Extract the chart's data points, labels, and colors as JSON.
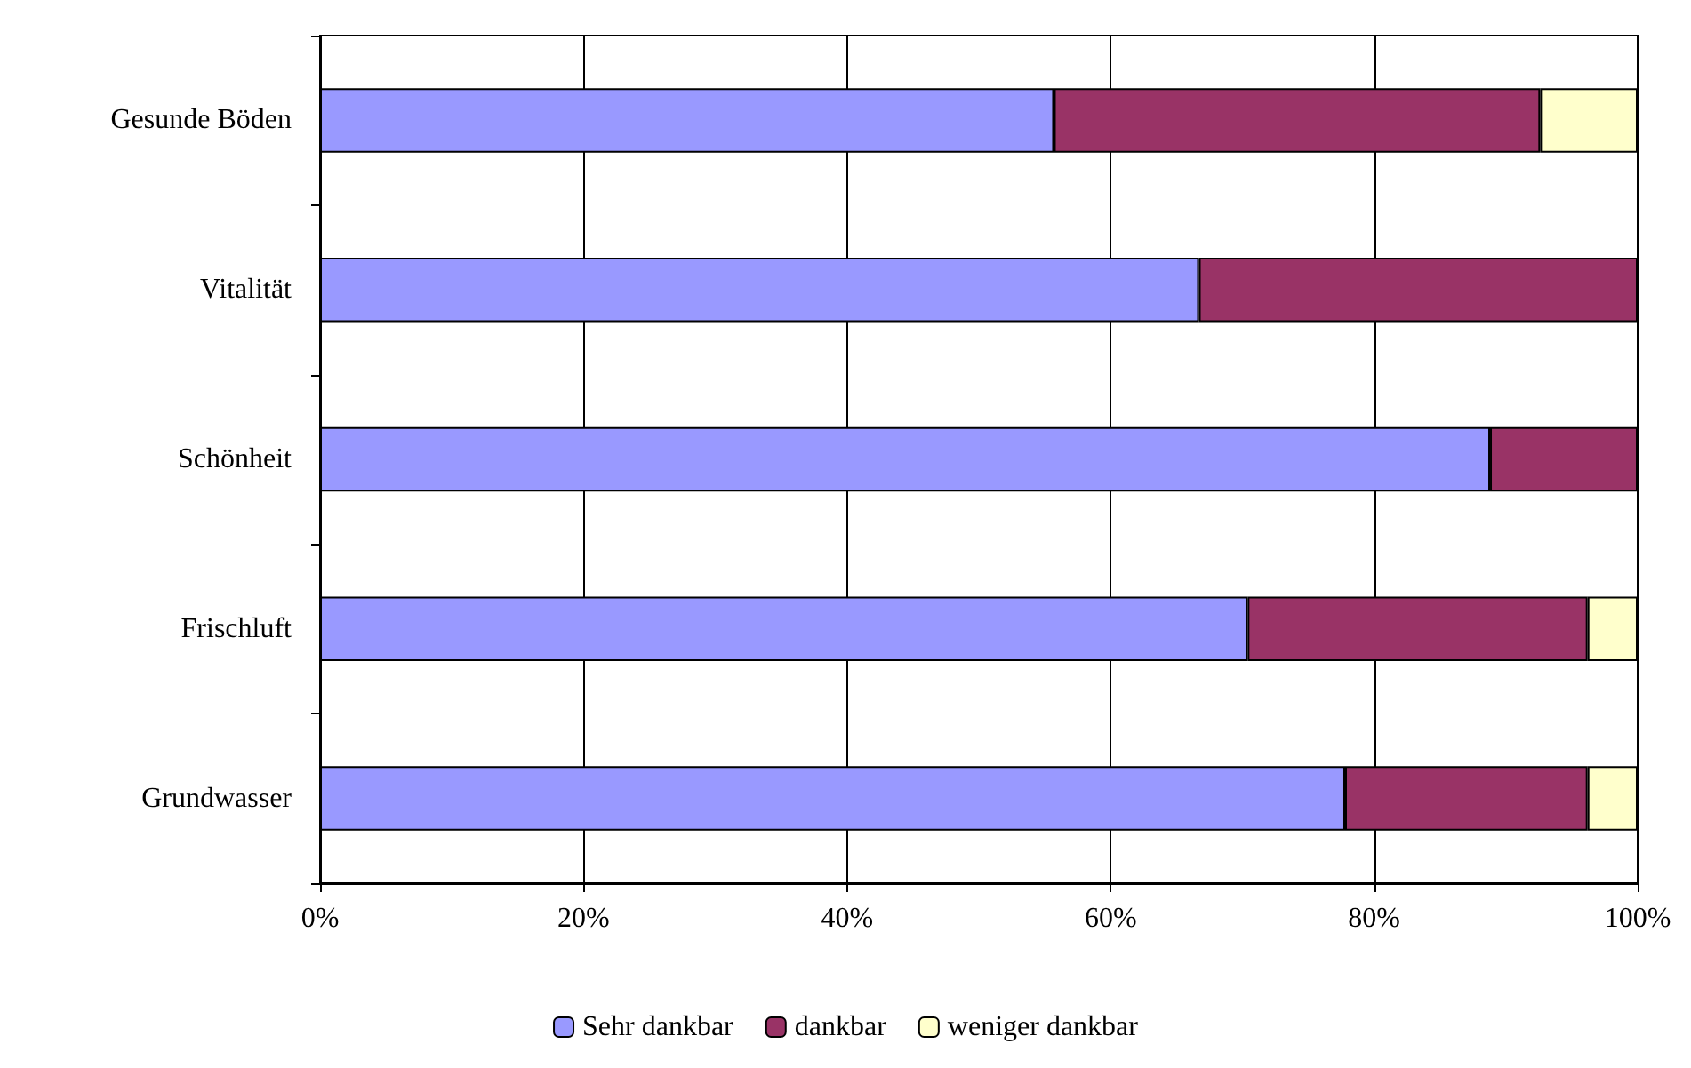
{
  "chart_data": {
    "type": "bar",
    "orientation": "horizontal",
    "stacked": true,
    "categories": [
      "Gesunde Böden",
      "Vitalität",
      "Schönheit",
      "Frischluft",
      "Grundwasser"
    ],
    "series": [
      {
        "name": "Sehr dankbar",
        "color": "#9999ff",
        "values": [
          55.7,
          66.7,
          88.8,
          70.4,
          77.8
        ]
      },
      {
        "name": "dankbar",
        "color": "#993366",
        "values": [
          36.9,
          33.3,
          11.2,
          25.8,
          18.4
        ]
      },
      {
        "name": "weniger dankbar",
        "color": "#ffffcc",
        "values": [
          7.4,
          0,
          0,
          3.8,
          3.8
        ]
      }
    ],
    "xlim": [
      0,
      100
    ],
    "xticks": [
      {
        "value": 0,
        "label": "0%"
      },
      {
        "value": 20,
        "label": "20%"
      },
      {
        "value": 40,
        "label": "40%"
      },
      {
        "value": 60,
        "label": "60%"
      },
      {
        "value": 80,
        "label": "80%"
      },
      {
        "value": 100,
        "label": "100%"
      }
    ],
    "grid": "x",
    "legend": "bottom"
  }
}
